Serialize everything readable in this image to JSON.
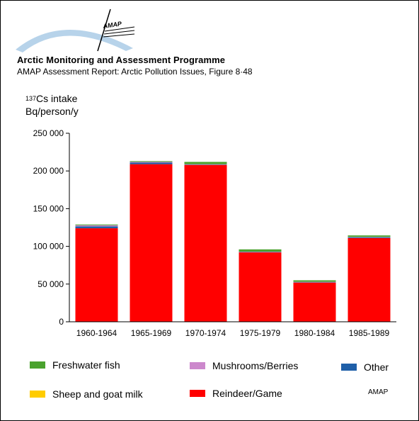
{
  "header": {
    "logo_text": "AMAP",
    "title": "Arctic Monitoring and Assessment Programme",
    "subtitle": "AMAP Assessment Report: Arctic Pollution Issues, Figure 8·48"
  },
  "footer": {
    "tag": "AMAP"
  },
  "colors": {
    "Reindeer/Game": "#ff0000",
    "Freshwater fish": "#4aa22e",
    "Mushrooms/Berries": "#cc88cc",
    "Other": "#1f5fa8",
    "Sheep and goat milk": "#ffcc00"
  },
  "chart_data": {
    "type": "bar",
    "stacked": true,
    "ylabel_superscript": "137",
    "ylabel_line1": "Cs intake",
    "ylabel_line2": "Bq/person/y",
    "categories": [
      "1960-1964",
      "1965-1969",
      "1970-1974",
      "1975-1979",
      "1980-1984",
      "1985-1989"
    ],
    "ylim": [
      0,
      250000
    ],
    "yticks": [
      0,
      50000,
      100000,
      150000,
      200000,
      250000
    ],
    "ytick_labels": [
      "0",
      "50 000",
      "100 000",
      "150 000",
      "200 000",
      "250 000"
    ],
    "series": [
      {
        "name": "Reindeer/Game",
        "values": [
          124000,
          209000,
          208000,
          92000,
          52000,
          111000
        ]
      },
      {
        "name": "Sheep and goat milk",
        "values": [
          0,
          0,
          0,
          0,
          0,
          0
        ]
      },
      {
        "name": "Other",
        "values": [
          2500,
          2000,
          500,
          500,
          500,
          1000
        ]
      },
      {
        "name": "Mushrooms/Berries",
        "values": [
          1500,
          1000,
          500,
          500,
          500,
          500
        ]
      },
      {
        "name": "Freshwater fish",
        "values": [
          1000,
          1000,
          3000,
          3000,
          2000,
          2000
        ]
      }
    ],
    "legend": [
      {
        "label": "Freshwater fish",
        "color_key": "Freshwater fish"
      },
      {
        "label": "Mushrooms/Berries",
        "color_key": "Mushrooms/Berries"
      },
      {
        "label": "Other",
        "color_key": "Other"
      },
      {
        "label": "Sheep and goat milk",
        "color_key": "Sheep and goat milk"
      },
      {
        "label": "Reindeer/Game",
        "color_key": "Reindeer/Game"
      }
    ],
    "legend_placement": "bottom",
    "grid": false
  }
}
